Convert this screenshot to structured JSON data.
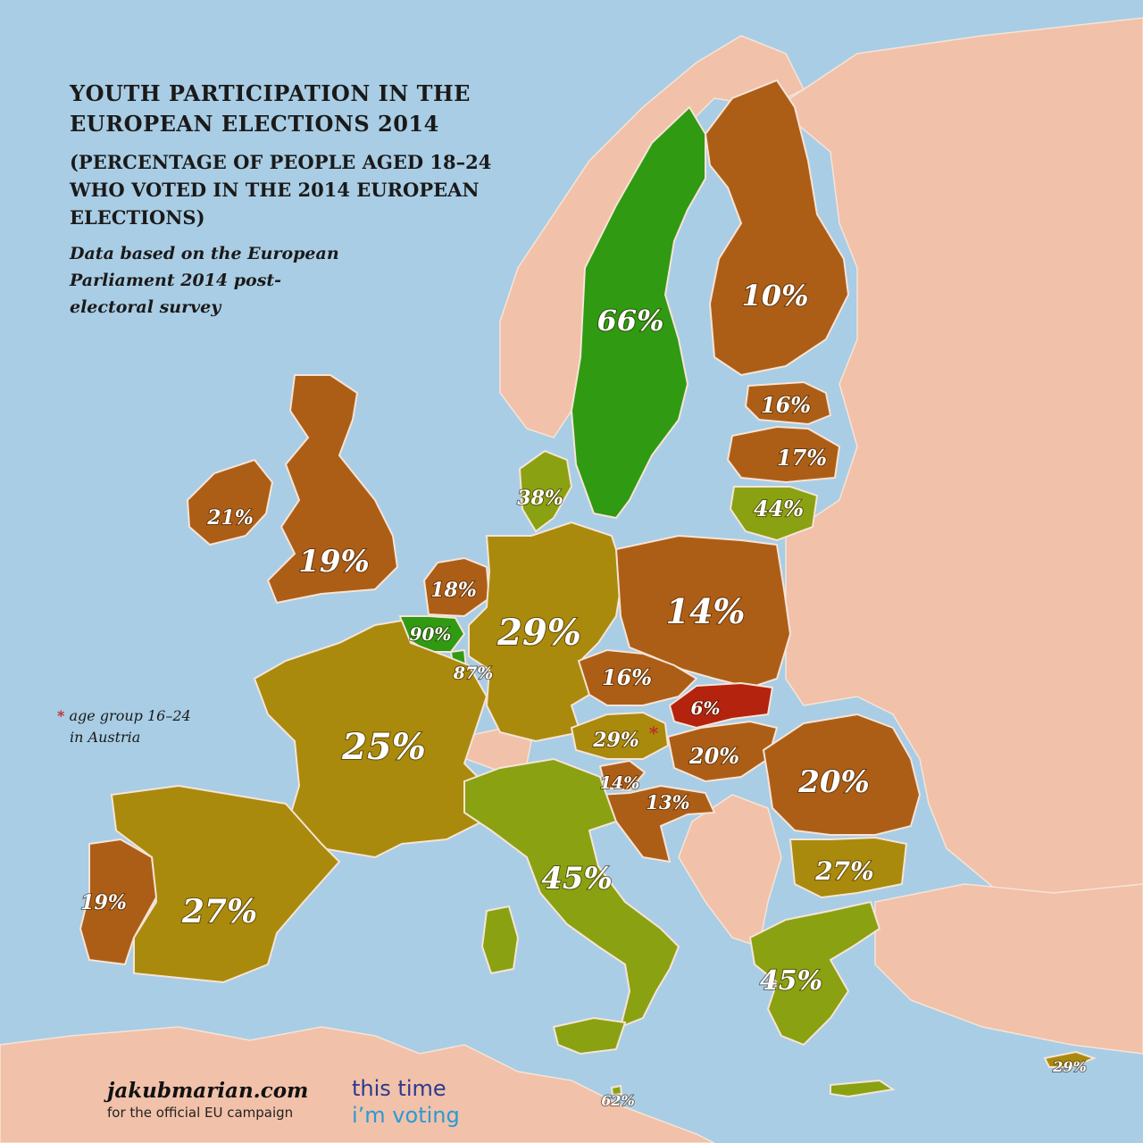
{
  "title": {
    "line1": "YOUTH PARTICIPATION IN THE",
    "line2": "EUROPEAN ELECTIONS 2014"
  },
  "subtitle": "(PERCENTAGE OF PEOPLE AGED 18–24 WHO VOTED IN THE 2014 EUROPEAN ELECTIONS)",
  "source": "Data based on the European Parliament 2014 post-electoral survey",
  "footnote": {
    "marker": "*",
    "line1": "age group 16–24",
    "line2": "in Austria"
  },
  "branding": {
    "site": "jakubmarian.com",
    "tagline": "for the official EU campaign",
    "campaign_line1": "this time",
    "campaign_line2": "i’m voting"
  },
  "colors": {
    "sea": "#a9cde4",
    "non_eu_land": "#f1c1a9",
    "highest": "#2f9a12",
    "high": "#8aa112",
    "mid": "#a98a0c",
    "low": "#ad5e16",
    "lowest": "#b4230e"
  },
  "map_data": {
    "type": "choropleth",
    "metric": "Percentage of people aged 18–24 who voted in the 2014 European elections",
    "regions": [
      {
        "id": "sweden",
        "value": 66,
        "label": "66%"
      },
      {
        "id": "finland",
        "value": 10,
        "label": "10%"
      },
      {
        "id": "estonia",
        "value": 16,
        "label": "16%"
      },
      {
        "id": "latvia",
        "value": 17,
        "label": "17%"
      },
      {
        "id": "lithuania",
        "value": 44,
        "label": "44%"
      },
      {
        "id": "denmark",
        "value": 38,
        "label": "38%"
      },
      {
        "id": "ireland",
        "value": 21,
        "label": "21%"
      },
      {
        "id": "united-kingdom",
        "value": 19,
        "label": "19%"
      },
      {
        "id": "netherlands",
        "value": 18,
        "label": "18%"
      },
      {
        "id": "belgium",
        "value": 90,
        "label": "90%"
      },
      {
        "id": "luxembourg",
        "value": 87,
        "label": "87%"
      },
      {
        "id": "germany",
        "value": 29,
        "label": "29%"
      },
      {
        "id": "poland",
        "value": 14,
        "label": "14%"
      },
      {
        "id": "czech-republic",
        "value": 16,
        "label": "16%"
      },
      {
        "id": "slovakia",
        "value": 6,
        "label": "6%"
      },
      {
        "id": "austria",
        "value": 29,
        "label": "29%",
        "note": "*"
      },
      {
        "id": "hungary",
        "value": 20,
        "label": "20%"
      },
      {
        "id": "slovenia",
        "value": 14,
        "label": "14%"
      },
      {
        "id": "croatia",
        "value": 13,
        "label": "13%"
      },
      {
        "id": "romania",
        "value": 20,
        "label": "20%"
      },
      {
        "id": "bulgaria",
        "value": 27,
        "label": "27%"
      },
      {
        "id": "france",
        "value": 25,
        "label": "25%"
      },
      {
        "id": "spain",
        "value": 27,
        "label": "27%"
      },
      {
        "id": "portugal",
        "value": 19,
        "label": "19%"
      },
      {
        "id": "italy",
        "value": 45,
        "label": "45%"
      },
      {
        "id": "greece",
        "value": 45,
        "label": "45%"
      },
      {
        "id": "malta",
        "value": 62,
        "label": "62%"
      },
      {
        "id": "cyprus",
        "value": 29,
        "label": "29%"
      }
    ]
  }
}
